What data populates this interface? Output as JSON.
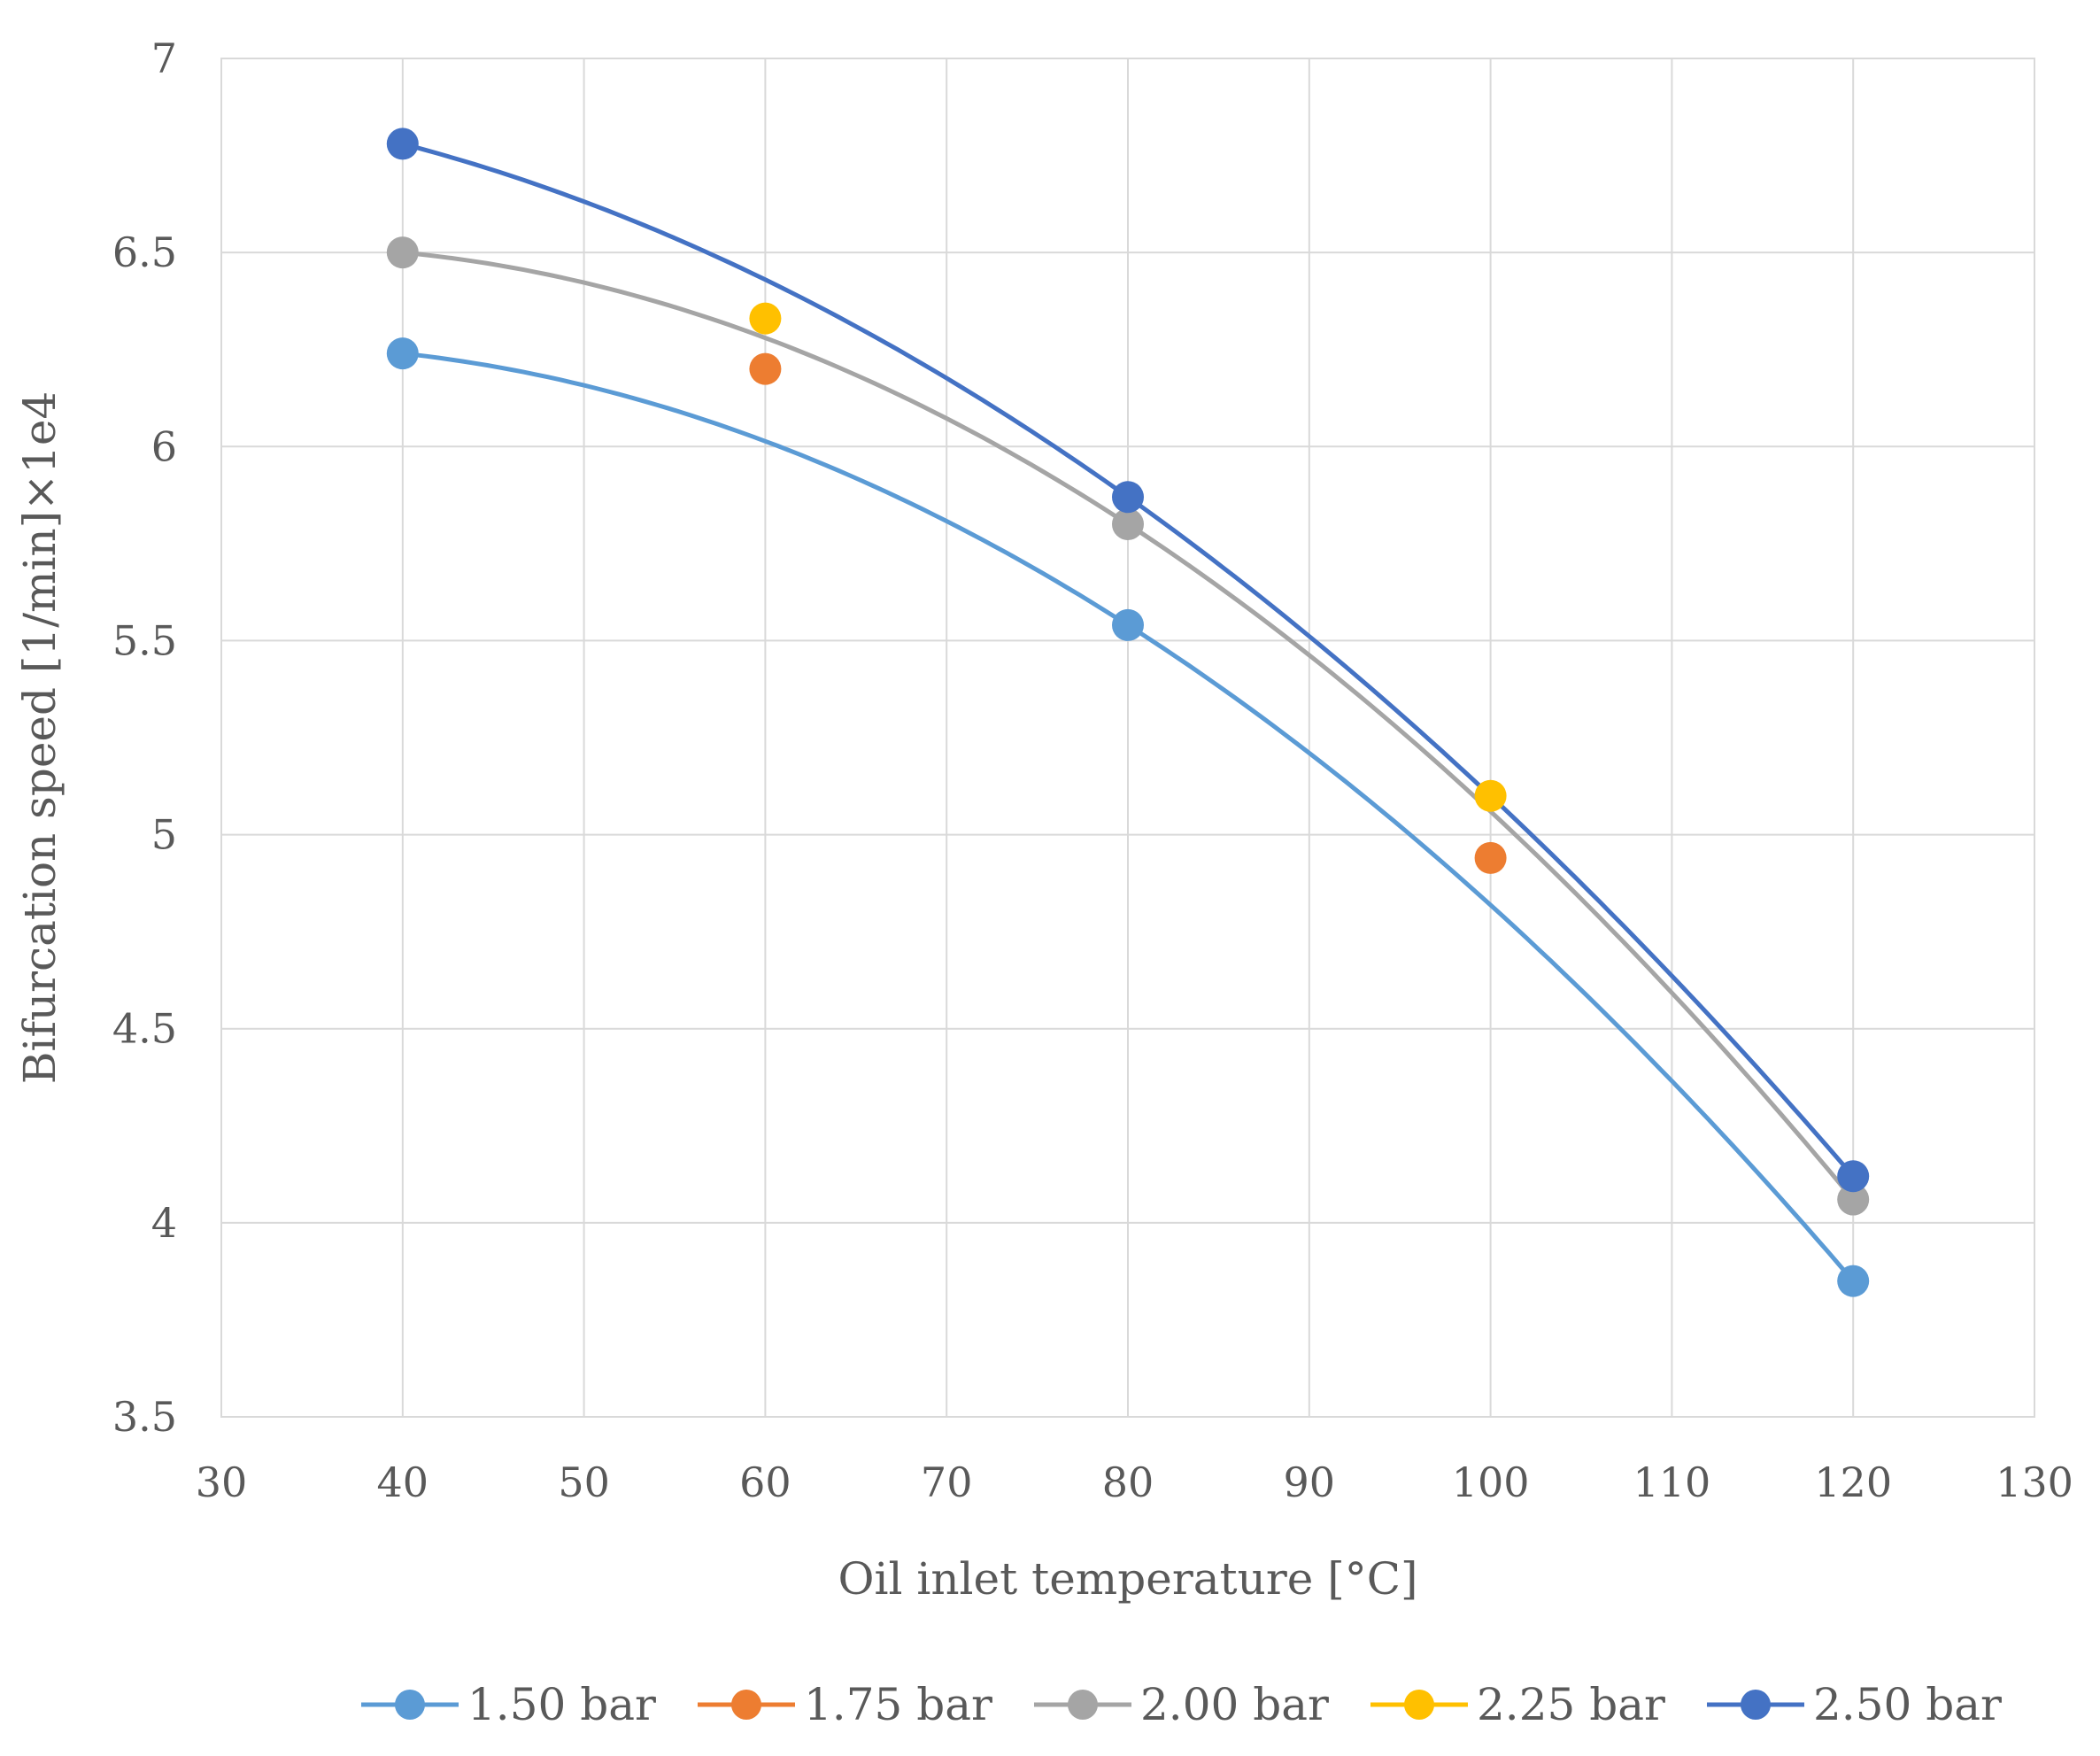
{
  "chart_data": {
    "type": "scatter",
    "title": "",
    "xlabel": "Oil inlet temperature [°C]",
    "ylabel": "Bifurcation speed [1/min]×1e4",
    "xlim": [
      30,
      130
    ],
    "ylim": [
      3.5,
      7
    ],
    "x_ticks": [
      "30",
      "40",
      "50",
      "60",
      "70",
      "80",
      "90",
      "100",
      "110",
      "120",
      "130"
    ],
    "y_ticks": [
      "3.5",
      "4",
      "4.5",
      "5",
      "5.5",
      "6",
      "6.5",
      "7"
    ],
    "grid": true,
    "legend_position": "bottom",
    "series": [
      {
        "name": "1.50 bar",
        "color": "#5b9bd5",
        "x": [
          40,
          80,
          120
        ],
        "values": [
          6.24,
          5.54,
          3.85
        ],
        "trendline": "polynomial"
      },
      {
        "name": "1.75 bar",
        "color": "#ed7d31",
        "x": [
          60,
          100
        ],
        "values": [
          6.2,
          4.94
        ],
        "trendline": "none"
      },
      {
        "name": "2.00 bar",
        "color": "#a5a5a5",
        "x": [
          40,
          80,
          120
        ],
        "values": [
          6.5,
          5.8,
          4.06
        ],
        "trendline": "polynomial"
      },
      {
        "name": "2.25 bar",
        "color": "#ffc000",
        "x": [
          60,
          100
        ],
        "values": [
          6.33,
          5.1
        ],
        "trendline": "none"
      },
      {
        "name": "2.50 bar",
        "color": "#4472c4",
        "x": [
          40,
          80,
          120
        ],
        "values": [
          6.78,
          5.87,
          4.12
        ],
        "trendline": "polynomial"
      }
    ]
  }
}
